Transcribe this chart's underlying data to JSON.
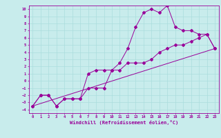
{
  "xlabel": "Windchill (Refroidissement éolien,°C)",
  "background_color": "#c8ecec",
  "line_color": "#990099",
  "xlim": [
    -0.5,
    23.5
  ],
  "ylim": [
    -4.5,
    10.5
  ],
  "xticks": [
    0,
    1,
    2,
    3,
    4,
    5,
    6,
    7,
    8,
    9,
    10,
    11,
    12,
    13,
    14,
    15,
    16,
    17,
    18,
    19,
    20,
    21,
    22,
    23
  ],
  "yticks": [
    -4,
    -3,
    -2,
    -1,
    0,
    1,
    2,
    3,
    4,
    5,
    6,
    7,
    8,
    9,
    10
  ],
  "line1_x": [
    0,
    1,
    2,
    3,
    4,
    5,
    6,
    7,
    8,
    9,
    10,
    11,
    12,
    13,
    14,
    15,
    16,
    17,
    18,
    19,
    20,
    21,
    22,
    23
  ],
  "line1_y": [
    -3.5,
    -2.0,
    -2.0,
    -3.5,
    -2.5,
    -2.5,
    -2.5,
    -1.0,
    -1.0,
    -1.0,
    1.5,
    2.5,
    4.5,
    7.5,
    9.5,
    10.0,
    9.5,
    10.5,
    7.5,
    7.0,
    7.0,
    6.5,
    6.5,
    4.5
  ],
  "line2_x": [
    0,
    1,
    2,
    3,
    4,
    5,
    6,
    7,
    8,
    9,
    10,
    11,
    12,
    13,
    14,
    15,
    16,
    17,
    18,
    19,
    20,
    21,
    22,
    23
  ],
  "line2_y": [
    -3.5,
    -2.0,
    -2.0,
    -3.5,
    -2.5,
    -2.5,
    -2.5,
    1.0,
    1.5,
    1.5,
    1.5,
    1.5,
    2.5,
    2.5,
    2.5,
    3.0,
    4.0,
    4.5,
    5.0,
    5.0,
    5.5,
    6.0,
    6.5,
    4.5
  ],
  "line3_x": [
    0,
    23
  ],
  "line3_y": [
    -3.5,
    4.5
  ],
  "grid_color": "#aadddd",
  "marker": "D",
  "marker_size": 2.0,
  "linewidth": 0.7,
  "tick_fontsize": 4.0,
  "xlabel_fontsize": 5.0
}
